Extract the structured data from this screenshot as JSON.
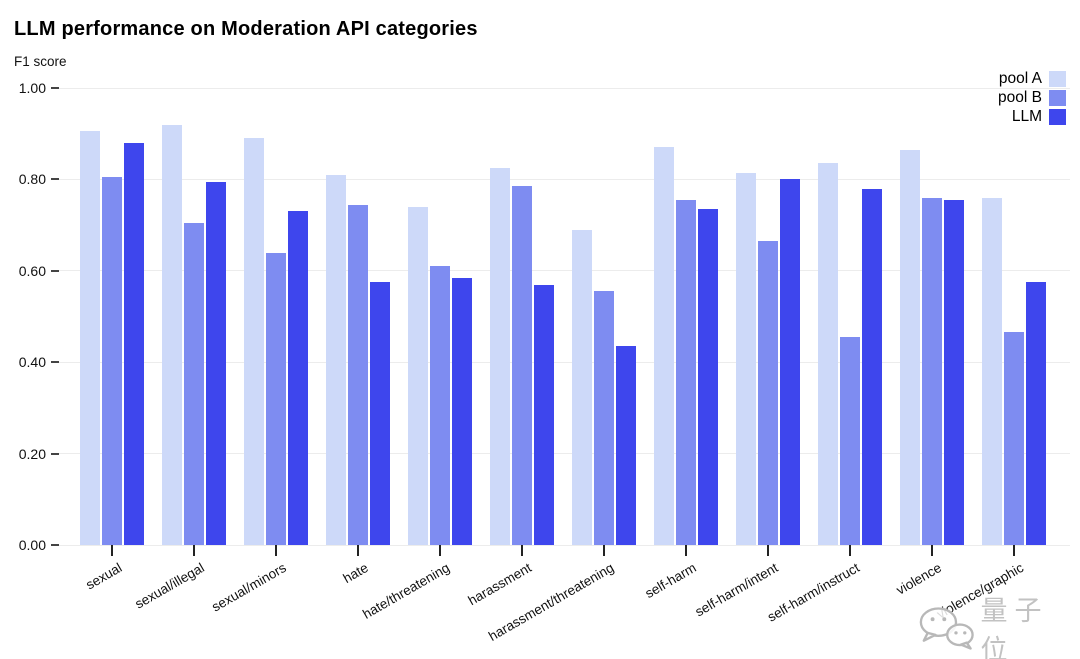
{
  "title": "LLM performance on Moderation API categories",
  "subtitle": "F1 score",
  "watermark": {
    "text": "量子位",
    "icon": "wechat-chat-bubbles-icon"
  },
  "chart_data": {
    "type": "bar",
    "title": "LLM performance on Moderation API categories",
    "xlabel": "",
    "ylabel": "F1 score",
    "ylim": [
      0,
      1
    ],
    "yticks": [
      0,
      0.2,
      0.4,
      0.6,
      0.8,
      1.0
    ],
    "ytick_labels": [
      "0.00",
      "0.20",
      "0.40",
      "0.60",
      "0.80",
      "1.00"
    ],
    "grid": "horizontal",
    "legend_position": "top-right",
    "categories": [
      "sexual",
      "sexual/illegal",
      "sexual/minors",
      "hate",
      "hate/threatening",
      "harassment",
      "harassment/threatening",
      "self-harm",
      "self-harm/intent",
      "self-harm/instruct",
      "violence",
      "violence/graphic"
    ],
    "series": [
      {
        "name": "pool A",
        "color": "#cdd9f9",
        "values": [
          0.905,
          0.92,
          0.89,
          0.81,
          0.74,
          0.825,
          0.69,
          0.87,
          0.815,
          0.835,
          0.865,
          0.76
        ]
      },
      {
        "name": "pool B",
        "color": "#7e8cf1",
        "values": [
          0.805,
          0.705,
          0.64,
          0.745,
          0.61,
          0.785,
          0.555,
          0.755,
          0.665,
          0.455,
          0.76,
          0.465
        ]
      },
      {
        "name": "LLM",
        "color": "#3e46ed",
        "values": [
          0.88,
          0.795,
          0.73,
          0.575,
          0.585,
          0.57,
          0.435,
          0.735,
          0.8,
          0.78,
          0.755,
          0.575
        ]
      }
    ]
  }
}
